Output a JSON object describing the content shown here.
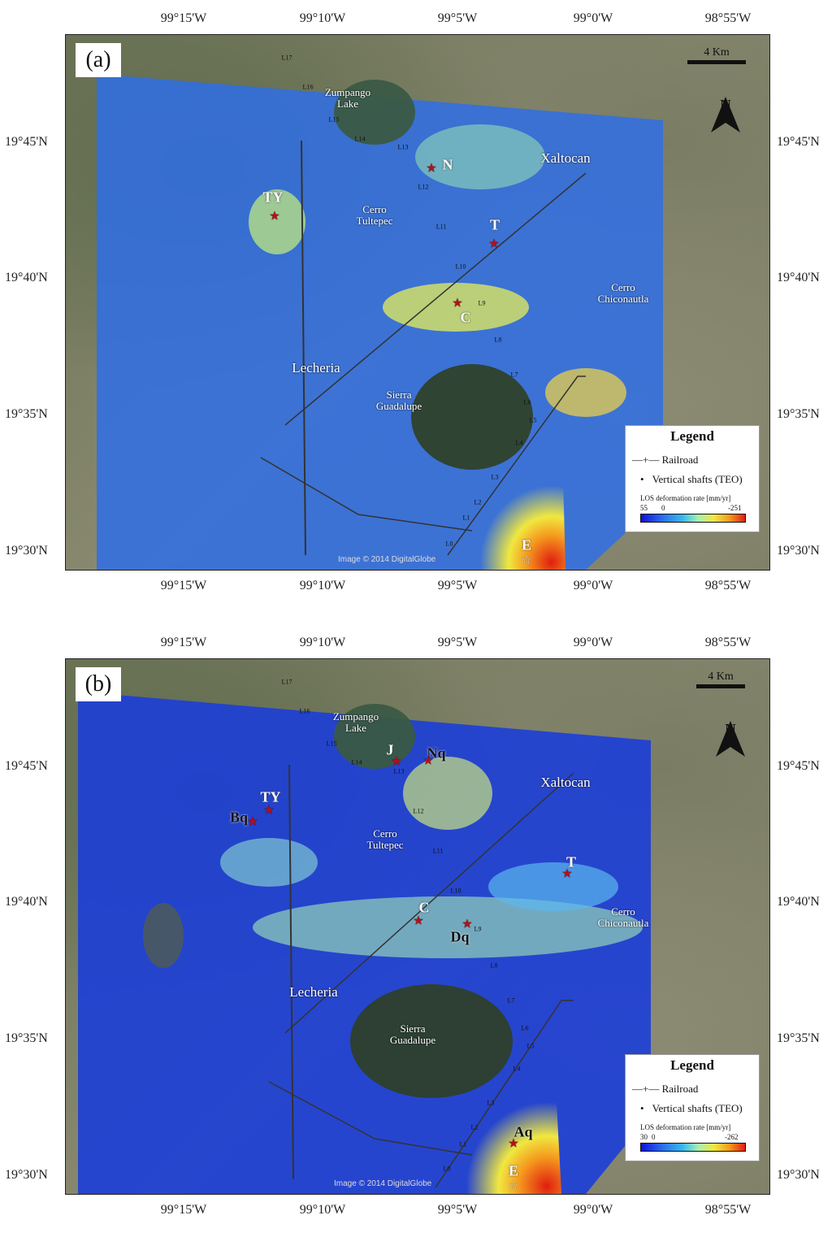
{
  "panels": [
    {
      "label": "(a)",
      "scale": "4 Km",
      "north": "N",
      "credit": "Image © 2014 DigitalGlobe",
      "top_ticks": [
        "99°15'W",
        "99°10'W",
        "99°5'W",
        "99°0'W",
        "98°55'W"
      ],
      "left_ticks": [
        "19°45'N",
        "19°40'N",
        "19°35'N",
        "19°30'N"
      ],
      "places": {
        "zumpango": "Zumpango\nLake",
        "tultepec": "Cerro\nTultepec",
        "xaltocan": "Xaltocan",
        "chiconautla": "Cerro\nChiconautla",
        "lecheria": "Lecheria",
        "guadalupe": "Sierra\nGuadalupe"
      },
      "sites": [
        "TY",
        "N",
        "T",
        "C",
        "E"
      ],
      "shafts": [
        "L17",
        "L16",
        "L15",
        "L14",
        "L13",
        "L12",
        "L11",
        "L10",
        "L9",
        "L8",
        "L7",
        "L6",
        "L5",
        "L4",
        "L3",
        "L2",
        "L1",
        "L0"
      ],
      "legend": {
        "title": "Legend",
        "railroad": "Railroad",
        "shafts": "Vertical shafts (TEO)",
        "cb_title": "LOS deformation rate [mm/yr]",
        "cb_min": "55",
        "cb_zero": "0",
        "cb_max": "-251"
      }
    },
    {
      "label": "(b)",
      "scale": "4 Km",
      "north": "N",
      "credit": "Image © 2014 DigitalGlobe",
      "top_ticks": [
        "99°15'W",
        "99°10'W",
        "99°5'W",
        "99°0'W",
        "98°55'W"
      ],
      "left_ticks": [
        "19°45'N",
        "19°40'N",
        "19°35'N",
        "19°30'N"
      ],
      "places": {
        "zumpango": "Zumpango\nLake",
        "tultepec": "Cerro\nTultepec",
        "xaltocan": "Xaltocan",
        "chiconautla": "Cerro\nChiconautla",
        "lecheria": "Lecheria",
        "guadalupe": "Sierra\nGuadalupe"
      },
      "sites": [
        "TY",
        "Bq",
        "J",
        "Nq",
        "T",
        "C",
        "Dq",
        "Aq",
        "E"
      ],
      "shafts": [
        "L17",
        "L16",
        "L15",
        "L14",
        "L13",
        "L12",
        "L11",
        "L10",
        "L9",
        "L8",
        "L7",
        "L6",
        "L5",
        "L4",
        "L3",
        "L2",
        "L1",
        "L0"
      ],
      "legend": {
        "title": "Legend",
        "railroad": "Railroad",
        "shafts": "Vertical shafts (TEO)",
        "cb_title": "LOS deformation rate [mm/yr]",
        "cb_min": "30",
        "cb_zero": "0",
        "cb_max": "-262"
      }
    }
  ],
  "colors": {
    "uplift": "#1010d8",
    "stable": "#37b9ef",
    "subsidence": "#e01e10",
    "star": "#b3101a"
  }
}
